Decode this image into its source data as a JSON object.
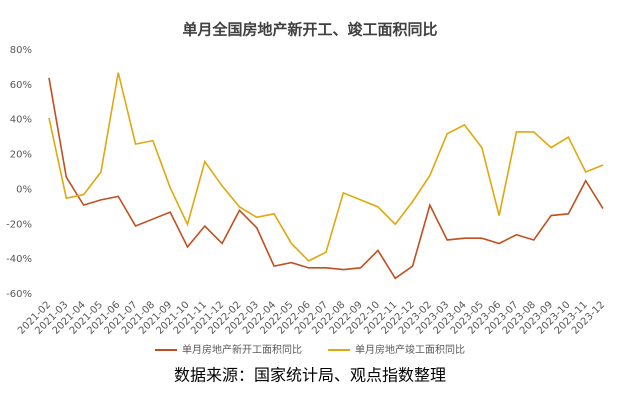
{
  "chart_data": {
    "type": "line",
    "title": "单月全国房地产新开工、竣工面积同比",
    "categories": [
      "2021-02",
      "2021-03",
      "2021-04",
      "2021-05",
      "2021-06",
      "2021-07",
      "2021-08",
      "2021-09",
      "2021-10",
      "2021-11",
      "2021-12",
      "2022-02",
      "2022-03",
      "2022-04",
      "2022-05",
      "2022-06",
      "2022-07",
      "2022-08",
      "2022-09",
      "2022-10",
      "2022-11",
      "2022-12",
      "2023-02",
      "2023-03",
      "2023-04",
      "2023-05",
      "2023-06",
      "2023-07",
      "2023-08",
      "2023-09",
      "2023-10",
      "2023-11",
      "2023-12"
    ],
    "series": [
      {
        "name": "单月房地产新开工面积同比",
        "color": "#c0501f",
        "values": [
          64,
          7,
          -9,
          -6,
          -4,
          -21,
          -17,
          -13,
          -33,
          -21,
          -31,
          -12,
          -22,
          -44,
          -42,
          -45,
          -45,
          -46,
          -45,
          -35,
          -51,
          -44,
          -9,
          -29,
          -28,
          -28,
          -31,
          -26,
          -29,
          -15,
          -14,
          5,
          -11
        ]
      },
      {
        "name": "单月房地产竣工面积同比",
        "color": "#e0a80f",
        "values": [
          41,
          -5,
          -3,
          10,
          67,
          26,
          28,
          1,
          -20,
          16,
          2,
          -10,
          -16,
          -14,
          -31,
          -41,
          -36,
          -2,
          -6,
          -10,
          -20,
          -7,
          8,
          32,
          37,
          24,
          -15,
          33,
          33,
          24,
          30,
          10,
          14
        ]
      }
    ],
    "ylim": [
      -60,
      80
    ],
    "yticks": [
      {
        "value": -60,
        "label": "-60%"
      },
      {
        "value": -40,
        "label": "-40%"
      },
      {
        "value": -20,
        "label": "-20%"
      },
      {
        "value": 0,
        "label": "0%"
      },
      {
        "value": 20,
        "label": "20%"
      },
      {
        "value": 40,
        "label": "40%"
      },
      {
        "value": 60,
        "label": "60%"
      },
      {
        "value": 80,
        "label": "80%"
      }
    ],
    "grid": false,
    "legend": "bottom",
    "source": "数据来源：国家统计局、观点指数整理"
  }
}
